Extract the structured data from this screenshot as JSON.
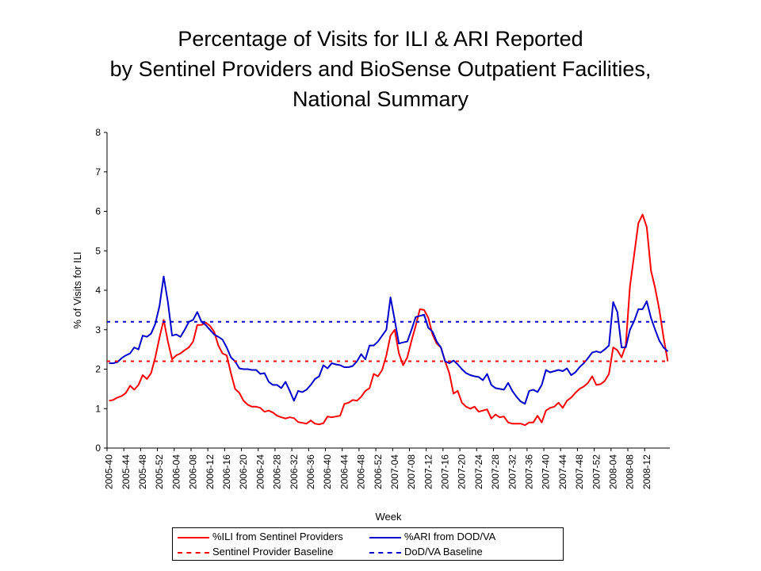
{
  "title_lines": [
    "Percentage of Visits for ILI & ARI Reported",
    "by Sentinel Providers and BioSense Outpatient Facilities,",
    "National Summary"
  ],
  "colors": {
    "ili": "#ff0000",
    "ari": "#0000cc"
  },
  "chart_data": {
    "type": "line",
    "title": "Percentage of Visits for ILI & ARI Reported by Sentinel Providers and BioSense Outpatient Facilities, National Summary",
    "xlabel": "Week",
    "ylabel": "% of Visits for ILI",
    "ylim": [
      0,
      8
    ],
    "yticks": [
      0,
      1,
      2,
      3,
      4,
      5,
      6,
      7,
      8
    ],
    "x_tick_labels": [
      "2005-40",
      "2005-44",
      "2005-48",
      "2005-52",
      "2006-04",
      "2006-08",
      "2006-12",
      "2006-16",
      "2006-20",
      "2006-24",
      "2006-28",
      "2006-32",
      "2006-36",
      "2006-40",
      "2006-44",
      "2006-48",
      "2006-52",
      "2007-04",
      "2007-08",
      "2007-12",
      "2007-16",
      "2007-20",
      "2007-24",
      "2007-28",
      "2007-32",
      "2007-36",
      "2007-40",
      "2007-44",
      "2007-48",
      "2007-52",
      "2008-04",
      "2008-08",
      "2008-12"
    ],
    "grid": false,
    "legend_position": "bottom",
    "series": [
      {
        "name": "%ILI from Sentinel Providers",
        "style": "solid",
        "color": "#ff0000",
        "values": [
          1.2,
          1.22,
          1.28,
          1.32,
          1.4,
          1.58,
          1.48,
          1.6,
          1.85,
          1.75,
          1.9,
          2.3,
          2.8,
          3.25,
          2.7,
          2.25,
          2.35,
          2.4,
          2.48,
          2.55,
          2.7,
          3.12,
          3.12,
          3.18,
          3.1,
          2.95,
          2.6,
          2.4,
          2.35,
          1.9,
          1.5,
          1.4,
          1.2,
          1.1,
          1.05,
          1.05,
          1.02,
          0.92,
          0.95,
          0.9,
          0.82,
          0.78,
          0.75,
          0.78,
          0.76,
          0.66,
          0.64,
          0.62,
          0.7,
          0.62,
          0.6,
          0.63,
          0.8,
          0.78,
          0.8,
          0.82,
          1.12,
          1.15,
          1.22,
          1.2,
          1.3,
          1.45,
          1.52,
          1.88,
          1.82,
          1.98,
          2.35,
          2.85,
          3.0,
          2.4,
          2.1,
          2.3,
          2.72,
          3.1,
          3.52,
          3.5,
          3.3,
          2.88,
          2.65,
          2.55,
          2.2,
          1.9,
          1.38,
          1.45,
          1.15,
          1.05,
          1.0,
          1.05,
          0.92,
          0.95,
          0.98,
          0.75,
          0.85,
          0.78,
          0.8,
          0.65,
          0.62,
          0.62,
          0.62,
          0.58,
          0.65,
          0.65,
          0.82,
          0.65,
          0.95,
          1.02,
          1.05,
          1.15,
          1.02,
          1.2,
          1.28,
          1.4,
          1.5,
          1.56,
          1.65,
          1.82,
          1.6,
          1.62,
          1.7,
          1.88,
          2.55,
          2.48,
          2.3,
          2.6,
          4.1,
          4.9,
          5.7,
          5.92,
          5.6,
          4.5,
          4.05,
          3.5,
          2.8,
          2.2
        ]
      },
      {
        "name": "%ARI from DOD/VA",
        "style": "solid",
        "color": "#0000cc",
        "values": [
          2.15,
          2.15,
          2.18,
          2.28,
          2.35,
          2.4,
          2.55,
          2.5,
          2.85,
          2.82,
          2.9,
          3.15,
          3.6,
          4.35,
          3.7,
          2.85,
          2.88,
          2.82,
          3.0,
          3.2,
          3.25,
          3.45,
          3.2,
          3.12,
          3.0,
          2.88,
          2.82,
          2.75,
          2.55,
          2.3,
          2.2,
          2.02,
          2.0,
          2.0,
          1.98,
          1.98,
          1.88,
          1.9,
          1.68,
          1.6,
          1.6,
          1.52,
          1.68,
          1.45,
          1.2,
          1.45,
          1.42,
          1.48,
          1.6,
          1.75,
          1.82,
          2.1,
          2.02,
          2.15,
          2.12,
          2.1,
          2.05,
          2.05,
          2.08,
          2.2,
          2.38,
          2.25,
          2.6,
          2.6,
          2.7,
          2.85,
          3.0,
          3.82,
          3.25,
          2.65,
          2.68,
          2.7,
          3.0,
          3.32,
          3.35,
          3.38,
          3.05,
          2.95,
          2.7,
          2.55,
          2.2,
          2.15,
          2.22,
          2.12,
          2.0,
          1.9,
          1.85,
          1.82,
          1.8,
          1.72,
          1.88,
          1.6,
          1.52,
          1.5,
          1.48,
          1.65,
          1.45,
          1.3,
          1.18,
          1.12,
          1.45,
          1.48,
          1.42,
          1.6,
          1.98,
          1.92,
          1.95,
          1.98,
          1.95,
          2.02,
          1.85,
          1.92,
          2.05,
          2.15,
          2.28,
          2.42,
          2.45,
          2.42,
          2.5,
          2.6,
          3.7,
          3.45,
          2.55,
          2.55,
          3.0,
          3.22,
          3.52,
          3.52,
          3.72,
          3.3,
          3.0,
          2.72,
          2.55,
          2.45
        ]
      },
      {
        "name": "Sentinel Provider Baseline",
        "style": "dashed",
        "color": "#ff0000",
        "constant": 2.2
      },
      {
        "name": "DoD/VA Baseline",
        "style": "dashed",
        "color": "#0000cc",
        "constant": 3.2
      }
    ]
  },
  "legend": {
    "ili": "%ILI from Sentinel Providers",
    "ari": "%ARI from DOD/VA",
    "sentinel_baseline": "Sentinel Provider Baseline",
    "dodva_baseline": "DoD/VA Baseline"
  }
}
